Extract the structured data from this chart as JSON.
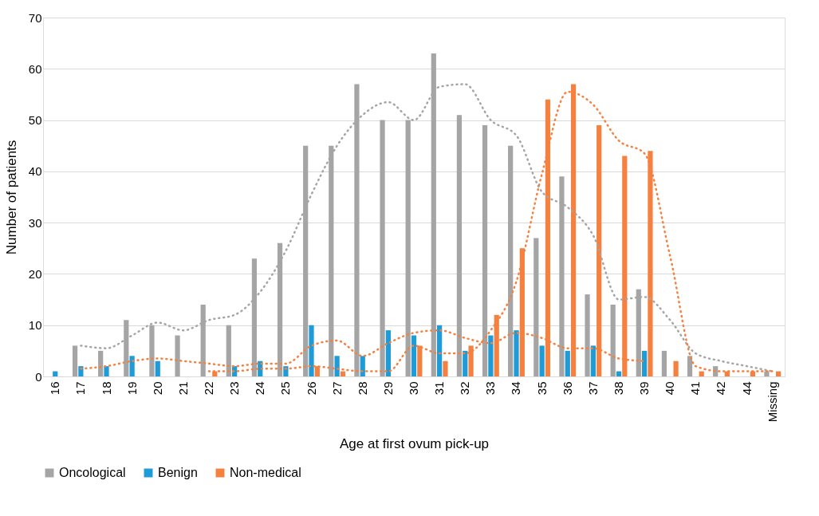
{
  "chart_data": {
    "type": "bar",
    "xlabel": "Age at first ovum pick-up",
    "ylabel": "Number of patients",
    "categories": [
      "16",
      "17",
      "18",
      "19",
      "20",
      "21",
      "22",
      "23",
      "24",
      "25",
      "26",
      "27",
      "28",
      "29",
      "30",
      "31",
      "32",
      "33",
      "34",
      "35",
      "36",
      "37",
      "38",
      "39",
      "40",
      "41",
      "42",
      "44",
      "Missing"
    ],
    "series": [
      {
        "name": "Oncological",
        "color": "#a5a5a5",
        "values": [
          null,
          6,
          5,
          11,
          10,
          8,
          14,
          10,
          23,
          26,
          45,
          45,
          57,
          50,
          50,
          63,
          51,
          49,
          45,
          27,
          39,
          16,
          14,
          17,
          5,
          4,
          2,
          null,
          1
        ]
      },
      {
        "name": "Benign",
        "color": "#1f9bd7",
        "values": [
          1,
          2,
          2,
          4,
          3,
          null,
          null,
          2,
          3,
          2,
          10,
          4,
          4,
          9,
          8,
          10,
          5,
          8,
          9,
          6,
          5,
          6,
          1,
          5,
          null,
          null,
          null,
          null,
          null
        ]
      },
      {
        "name": "Non-medical",
        "color": "#f4813f",
        "values": [
          null,
          null,
          null,
          null,
          null,
          null,
          1,
          null,
          null,
          null,
          2,
          1,
          null,
          null,
          6,
          3,
          6,
          12,
          25,
          54,
          57,
          49,
          43,
          44,
          3,
          1,
          1,
          1,
          1
        ]
      },
      {
        "type": "line",
        "color": "#a5a5a5",
        "line_style": "dotted",
        "values": [
          null,
          6,
          5.5,
          8,
          10.5,
          9,
          11,
          12,
          16.5,
          24.5,
          35.5,
          45,
          51,
          53.5,
          50,
          56.5,
          57,
          50,
          47,
          36,
          33,
          27.5,
          15,
          15.5,
          11,
          4.5,
          3,
          2,
          1
        ]
      },
      {
        "type": "line",
        "color": "#f4813f",
        "line_style": "dotted",
        "values": [
          null,
          1.5,
          2,
          3,
          3.5,
          3,
          2.5,
          2,
          2.5,
          2.5,
          6,
          7,
          4,
          6.5,
          8.5,
          9,
          7.5,
          6.5,
          8.5,
          7.5,
          5.5,
          5.5,
          3.5,
          3,
          null,
          null,
          null,
          null,
          null
        ]
      },
      {
        "type": "line",
        "color": "#f4813f",
        "line_style": "dotted",
        "values": [
          null,
          null,
          null,
          null,
          null,
          null,
          1,
          1,
          1.5,
          1.5,
          2,
          1.5,
          1,
          1,
          6,
          4.5,
          4.5,
          9,
          18.5,
          39.5,
          55.5,
          53,
          46,
          43.5,
          23.5,
          2,
          1,
          1,
          1
        ]
      }
    ],
    "ylim": [
      0,
      70
    ],
    "yticks": [
      0,
      10,
      20,
      30,
      40,
      50,
      60,
      70
    ],
    "grid": "y",
    "legend": "bottom"
  }
}
